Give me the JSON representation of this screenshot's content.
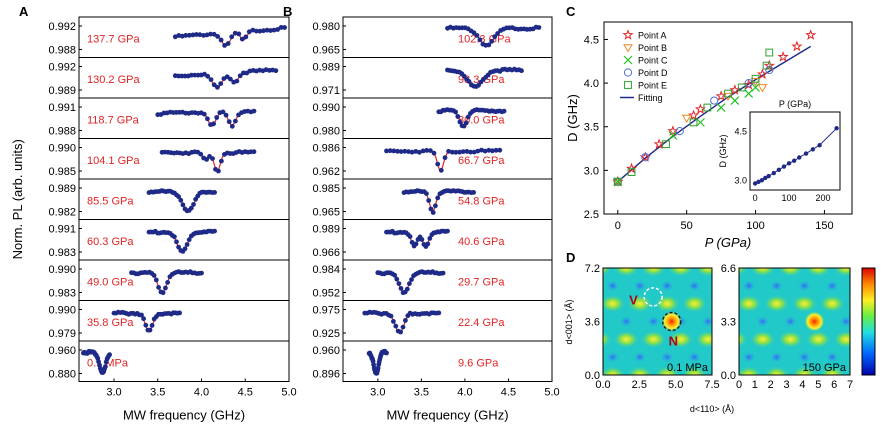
{
  "chart_data": [
    {
      "type": "line",
      "panel": "A",
      "ylabel": "Norm. PL (arb. units)",
      "xlabel": "MW frequency (GHz)",
      "xlim": [
        2.6,
        5.0
      ],
      "xticks": [
        "3.0",
        "3.5",
        "4.0",
        "4.5",
        "5.0"
      ],
      "subplots": [
        {
          "label": "137.7 GPa",
          "yticks": [
            "0.992",
            "0.988"
          ],
          "range": [
            3.7,
            4.95
          ],
          "dips": [
            [
              4.28,
              0.45,
              0.07
            ],
            [
              4.48,
              0.3,
              0.05
            ]
          ],
          "base": 0.55,
          "slope": 0.3
        },
        {
          "label": "130.2 GPa",
          "yticks": [
            "0.992",
            "0.989"
          ],
          "range": [
            3.7,
            4.85
          ],
          "dips": [
            [
              4.18,
              0.5,
              0.08
            ],
            [
              4.38,
              0.35,
              0.06
            ]
          ],
          "base": 0.6,
          "slope": 0.2
        },
        {
          "label": "118.7 GPa",
          "yticks": [
            "0.991",
            "0.988"
          ],
          "range": [
            3.5,
            4.6
          ],
          "dips": [
            [
              4.12,
              0.5,
              0.06
            ],
            [
              4.35,
              0.5,
              0.06
            ]
          ],
          "base": 0.7,
          "slope": 0.1
        },
        {
          "label": "104.1 GPa",
          "yticks": [
            "0.990",
            "0.985"
          ],
          "range": [
            3.55,
            4.6
          ],
          "dips": [
            [
              4.18,
              0.65,
              0.05
            ],
            [
              4.05,
              0.25,
              0.05
            ]
          ],
          "base": 0.75,
          "slope": 0.0
        },
        {
          "label": "85.5 GPa",
          "yticks": [
            "0.989",
            "0.982"
          ],
          "range": [
            3.4,
            4.15
          ],
          "dips": [
            [
              3.85,
              0.7,
              0.09
            ]
          ],
          "base": 0.8,
          "slope": 0.0
        },
        {
          "label": "60.3 GPa",
          "yticks": [
            "0.991",
            "0.983"
          ],
          "range": [
            3.4,
            4.15
          ],
          "dips": [
            [
              3.78,
              0.7,
              0.08
            ]
          ],
          "base": 0.8,
          "slope": 0.0
        },
        {
          "label": "49.0 GPa",
          "yticks": [
            "0.990",
            "0.983"
          ],
          "range": [
            3.2,
            4.0
          ],
          "dips": [
            [
              3.55,
              0.7,
              0.07
            ]
          ],
          "base": 0.8,
          "slope": 0.0
        },
        {
          "label": "35.8 GPa",
          "yticks": [
            "0.990",
            "0.979"
          ],
          "range": [
            3.0,
            3.75
          ],
          "dips": [
            [
              3.4,
              0.65,
              0.06
            ]
          ],
          "base": 0.8,
          "slope": 0.0
        },
        {
          "label": "0.1 MPa",
          "yticks": [
            "0.960",
            "0.880"
          ],
          "range": [
            2.65,
            2.95
          ],
          "dips": [
            [
              2.87,
              0.75,
              0.05
            ]
          ],
          "base": 0.85,
          "slope": 0.0
        }
      ]
    },
    {
      "type": "line",
      "panel": "B",
      "xlabel": "MW frequency (GHz)",
      "xlim": [
        2.6,
        5.0
      ],
      "xticks": [
        "3.0",
        "3.5",
        "4.0",
        "4.5",
        "5.0"
      ],
      "subplots": [
        {
          "label": "102.3 GPa",
          "yticks": [
            "0.980",
            "0.965"
          ],
          "range": [
            3.8,
            4.85
          ],
          "dips": [
            [
              4.25,
              0.6,
              0.12
            ]
          ],
          "base": 0.85,
          "slope": 0.0
        },
        {
          "label": "93.3 GPa",
          "yticks": [
            "0.989",
            "0.971"
          ],
          "range": [
            3.8,
            4.65
          ],
          "dips": [
            [
              4.12,
              0.6,
              0.12
            ]
          ],
          "base": 0.8,
          "slope": 0.0
        },
        {
          "label": "80.0 GPa",
          "yticks": [
            "0.990",
            "0.980"
          ],
          "range": [
            3.7,
            4.45
          ],
          "dips": [
            [
              3.98,
              0.55,
              0.06
            ]
          ],
          "base": 0.8,
          "slope": 0.0
        },
        {
          "label": "66.7 GPa",
          "yticks": [
            "0.986",
            "0.962"
          ],
          "range": [
            3.1,
            4.4
          ],
          "dips": [
            [
              3.72,
              0.7,
              0.05
            ]
          ],
          "base": 0.8,
          "slope": 0.0
        },
        {
          "label": "54.8 GPa",
          "yticks": [
            "0.985",
            "0.965"
          ],
          "range": [
            3.3,
            4.1
          ],
          "dips": [
            [
              3.63,
              0.7,
              0.05
            ]
          ],
          "base": 0.8,
          "slope": 0.0
        },
        {
          "label": "40.6 GPa",
          "yticks": [
            "0.989",
            "0.966"
          ],
          "range": [
            3.1,
            3.8
          ],
          "dips": [
            [
              3.42,
              0.5,
              0.05
            ],
            [
              3.55,
              0.5,
              0.05
            ]
          ],
          "base": 0.8,
          "slope": 0.0
        },
        {
          "label": "29.7 GPa",
          "yticks": [
            "0.984",
            "0.952"
          ],
          "range": [
            3.0,
            3.75
          ],
          "dips": [
            [
              3.3,
              0.7,
              0.08
            ]
          ],
          "base": 0.8,
          "slope": 0.0
        },
        {
          "label": "22.4 GPa",
          "yticks": [
            "0.975",
            "0.925"
          ],
          "range": [
            2.85,
            3.7
          ],
          "dips": [
            [
              3.25,
              0.7,
              0.07
            ]
          ],
          "base": 0.8,
          "slope": 0.0
        },
        {
          "label": "9.6 GPa",
          "yticks": [
            "0.960",
            "0.896"
          ],
          "range": [
            2.9,
            3.1
          ],
          "dips": [
            [
              2.98,
              0.75,
              0.04
            ]
          ],
          "base": 0.85,
          "slope": 0.0
        }
      ]
    },
    {
      "type": "scatter",
      "panel": "C",
      "xlabel": "P (GPa)",
      "ylabel": "D (GHz)",
      "xlim": [
        -10,
        170
      ],
      "ylim": [
        2.5,
        4.7
      ],
      "xticks": [
        0,
        50,
        100,
        150
      ],
      "yticks": [
        2.5,
        3.0,
        3.5,
        4.0,
        4.5
      ],
      "legend": [
        "Point A",
        "Point B",
        "Point C",
        "Point D",
        "Point E",
        "Fitting"
      ],
      "series": [
        {
          "name": "Point A",
          "marker": "star",
          "color": "#e02424",
          "x": [
            0,
            10,
            20,
            30,
            40,
            55,
            60,
            75,
            85,
            95,
            105,
            110,
            120,
            130,
            140
          ],
          "y": [
            2.87,
            3.02,
            3.15,
            3.3,
            3.45,
            3.63,
            3.7,
            3.85,
            3.92,
            3.98,
            4.1,
            4.2,
            4.3,
            4.42,
            4.55
          ]
        },
        {
          "name": "Point B",
          "marker": "triangle-down",
          "color": "#f08a24",
          "x": [
            0,
            50,
            80,
            100,
            105
          ],
          "y": [
            2.87,
            3.6,
            3.85,
            4.02,
            3.95
          ]
        },
        {
          "name": "Point C",
          "marker": "x",
          "color": "#22c022",
          "x": [
            0,
            40,
            60,
            75,
            85,
            95,
            100
          ],
          "y": [
            2.87,
            3.4,
            3.55,
            3.72,
            3.8,
            3.88,
            3.95
          ]
        },
        {
          "name": "Point D",
          "marker": "circle",
          "color": "#4f6fe0",
          "x": [
            0,
            20,
            45,
            70,
            95,
            110
          ],
          "y": [
            2.87,
            3.15,
            3.45,
            3.8,
            4.0,
            4.15
          ]
        },
        {
          "name": "Point E",
          "marker": "square",
          "color": "#2e9e2e",
          "x": [
            0,
            10,
            35,
            55,
            65,
            80,
            90,
            100,
            108,
            110
          ],
          "y": [
            2.87,
            2.98,
            3.3,
            3.55,
            3.72,
            3.88,
            3.95,
            4.05,
            4.2,
            4.35
          ]
        }
      ],
      "fitting": {
        "x": [
          0,
          20,
          40,
          60,
          80,
          100,
          120,
          140
        ],
        "y": [
          2.87,
          3.14,
          3.39,
          3.62,
          3.84,
          4.04,
          4.23,
          4.42
        ]
      },
      "inset": {
        "xlabel": "P (GPa)",
        "ylabel": "D (GHz)",
        "xticks": [
          0,
          100,
          200
        ],
        "yticks": [
          3.0,
          4.5
        ],
        "xlim": [
          -15,
          250
        ],
        "ylim": [
          2.7,
          5.1
        ],
        "x": [
          0,
          10,
          20,
          30,
          40,
          55,
          70,
          85,
          100,
          115,
          130,
          150,
          170,
          190,
          240
        ],
        "y": [
          2.9,
          2.95,
          3.0,
          3.07,
          3.13,
          3.22,
          3.32,
          3.42,
          3.52,
          3.6,
          3.7,
          3.82,
          3.95,
          4.08,
          4.6
        ]
      }
    },
    {
      "type": "heatmap",
      "panel": "D",
      "xlabel": "d<110> (Å)",
      "ylabel": "d<001> (Å)",
      "maps": [
        {
          "label": "0.1 MPa",
          "xticks": [
            "0.0",
            "2.5",
            "5.0",
            "7.5"
          ],
          "yticks": [
            "7.2",
            "3.6",
            "0.0"
          ],
          "xlim": [
            0,
            7.5
          ],
          "ylim": [
            0,
            7.2
          ],
          "annotations": [
            "V",
            "N"
          ]
        },
        {
          "label": "150 GPa",
          "xticks": [
            "0",
            "1",
            "2",
            "3",
            "4",
            "5",
            "6",
            "7"
          ],
          "yticks": [
            "6.6",
            "3.3",
            "0.0"
          ],
          "xlim": [
            0,
            7
          ],
          "ylim": [
            0,
            6.6
          ]
        }
      ]
    }
  ]
}
